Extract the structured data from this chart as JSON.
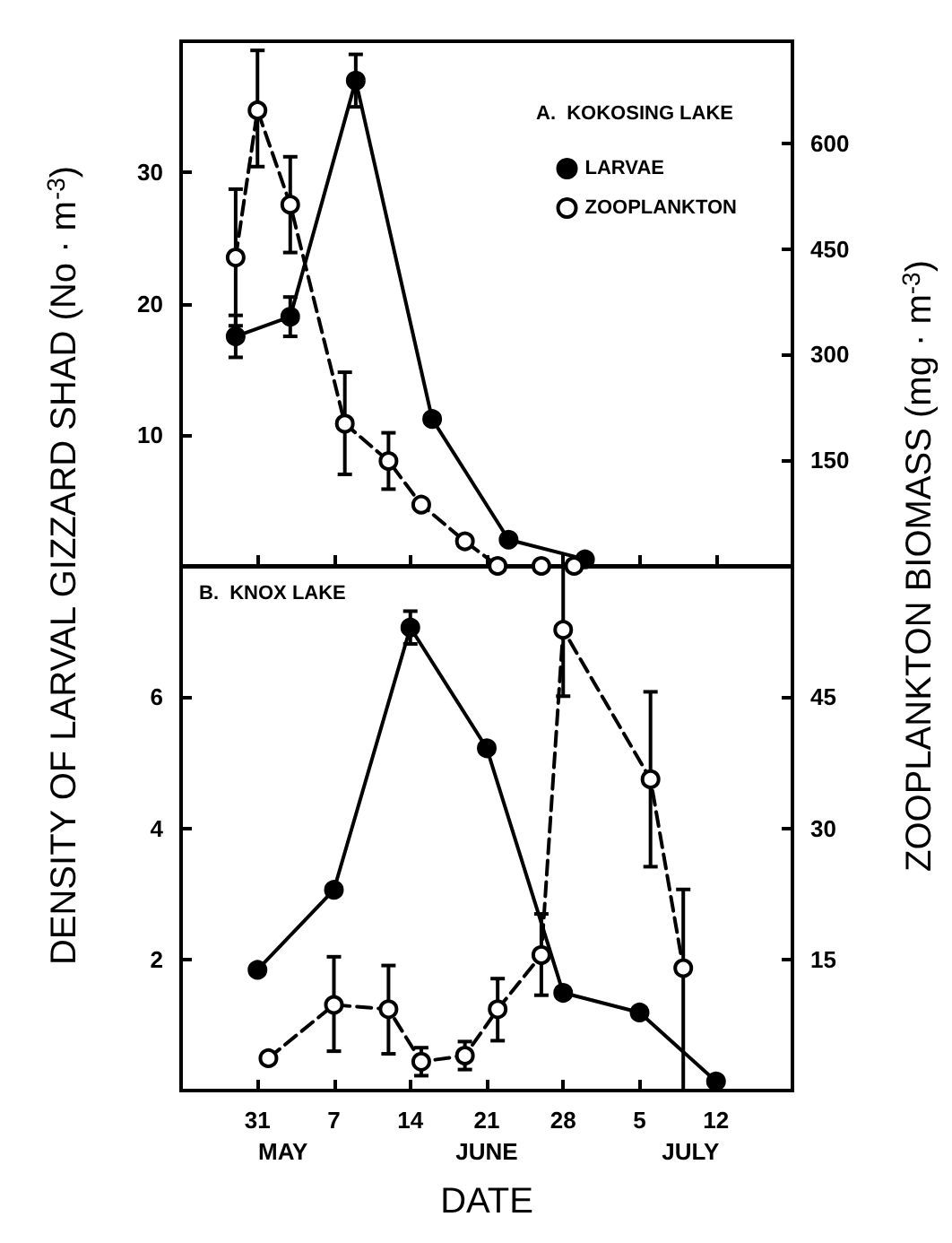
{
  "chart_data": [
    {
      "type": "line",
      "title": "A.  KOKOSING LAKE",
      "ylabel": "DENSITY OF LARVAL GIZZARD SHAD (No · m$^{-3}$)",
      "y2label": "ZOOPLANKTON BIOMASS (mg · m$^{-3}$)",
      "xlim": [
        "--05-24",
        "--07-19"
      ],
      "xticks": [
        {
          "value": "--05-31",
          "label": null
        },
        {
          "value": "--06-07",
          "label": null
        },
        {
          "value": "--06-14",
          "label": null
        },
        {
          "value": "--06-21",
          "label": null
        },
        {
          "value": "--06-28",
          "label": null
        },
        {
          "value": "--07-05",
          "label": null
        },
        {
          "value": "--07-12",
          "label": null
        }
      ],
      "ylim": [
        0,
        40
      ],
      "yticks": [
        10,
        20,
        30
      ],
      "y2lim": [
        0,
        745
      ],
      "y2ticks": [
        150,
        300,
        450,
        600
      ],
      "tick_labels": "y",
      "legend": "top right",
      "grid": false,
      "series": [
        {
          "name": "LARVAE",
          "color": "#000000",
          "marker": "circle",
          "line_style": "solid",
          "x": [
            "--05-29",
            "--06-03",
            "--06-09",
            "--06-16",
            "--06-23",
            "--06-30"
          ],
          "values": [
            17.5,
            19,
            37,
            11.2,
            2,
            0.5
          ],
          "errors": [
            1.6,
            1.5,
            2,
            null,
            null,
            null
          ]
        },
        {
          "name": "ZOOPLANKTON",
          "color": "#000000",
          "marker": "open circle",
          "line_style": "dashed",
          "axis": "y2",
          "x": [
            "--05-29",
            "--05-31",
            "--06-03",
            "--06-08",
            "--06-12",
            "--06-15",
            "--06-19",
            "--06-22",
            "--06-26",
            "--06-29"
          ],
          "values": [
            438,
            647,
            513,
            202,
            149,
            87,
            35,
            0,
            0,
            0
          ],
          "errors": [
            97,
            [
              567,
              732
            ],
            [
              445,
              581
            ],
            [
              130,
              275
            ],
            [
              109,
              189
            ],
            null,
            null,
            null,
            null,
            null
          ]
        }
      ]
    },
    {
      "type": "line",
      "title": "B.  KNOX LAKE",
      "xlabel": "DATE",
      "xlim": [
        "--05-24",
        "--07-19"
      ],
      "xticks": [
        {
          "value": "--05-31",
          "label": "31"
        },
        {
          "value": "--06-07",
          "label": "7"
        },
        {
          "value": "--06-14",
          "label": "14"
        },
        {
          "value": "--06-21",
          "label": "21"
        },
        {
          "value": "--06-28",
          "label": "28"
        },
        {
          "value": "--07-05",
          "label": "5"
        },
        {
          "value": "--07-12",
          "label": "12"
        }
      ],
      "ylim": [
        0,
        8
      ],
      "yticks": [
        2,
        4,
        6
      ],
      "y2lim": [
        0,
        60
      ],
      "y2ticks": [
        15,
        30,
        45
      ],
      "grid": false,
      "annotations": [
        "MAY",
        "JUNE",
        "JULY"
      ],
      "series": [
        {
          "color": "#000000",
          "marker": "circle",
          "line_style": "solid",
          "x": [
            "--05-31",
            "--06-07",
            "--06-14",
            "--06-21",
            "--06-28",
            "--07-05",
            "--07-12"
          ],
          "values": [
            1.84,
            3.06,
            7.06,
            5.22,
            1.49,
            1.19,
            0.14
          ],
          "errors": [
            null,
            null,
            0.25,
            null,
            null,
            null,
            null
          ]
        },
        {
          "color": "#000000",
          "marker": "open circle",
          "line_style": "dashed",
          "axis": "y2",
          "x": [
            "--06-01",
            "--06-07",
            "--06-12",
            "--06-15",
            "--06-19",
            "--06-22",
            "--06-26",
            "--06-28",
            "--07-06",
            "--07-09"
          ],
          "values": [
            3.7,
            9.8,
            9.3,
            3.3,
            4,
            9.3,
            15.5,
            52.7,
            35.6,
            14
          ],
          "errors": [
            null,
            [
              4.5,
              15.3
            ],
            [
              4.2,
              14.3
            ],
            1.6,
            1.6,
            [
              5.7,
              12.8
            ],
            [
              10.9,
              20.2
            ],
            [
              45.1,
              60
            ],
            [
              25.6,
              45.6
            ],
            [
              0,
              23
            ]
          ]
        }
      ]
    }
  ]
}
